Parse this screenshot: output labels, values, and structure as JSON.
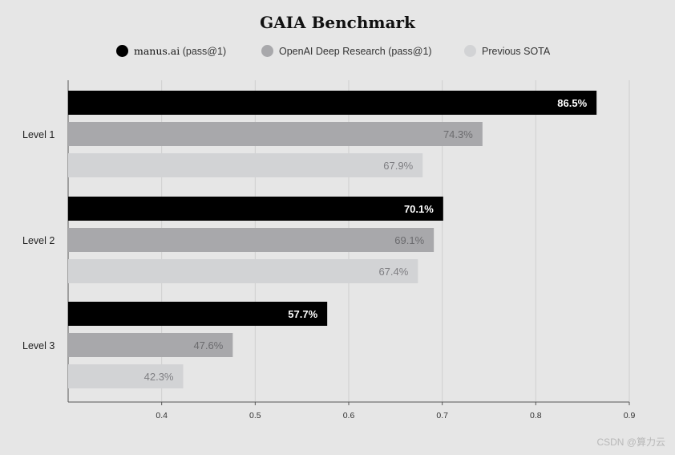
{
  "chart_data": {
    "type": "bar",
    "orientation": "horizontal",
    "title": "GAIA Benchmark",
    "categories": [
      "Level 1",
      "Level 2",
      "Level 3"
    ],
    "series": [
      {
        "name": "manus.ai",
        "legend_suffix": "(pass@1)",
        "color": "#000000",
        "label_color": "#ffffff",
        "values": [
          0.865,
          0.701,
          0.577
        ],
        "labels": [
          "86.5%",
          "70.1%",
          "57.7%"
        ]
      },
      {
        "name": "OpenAI Deep Research",
        "legend_suffix": "(pass@1)",
        "color": "#a8a8ab",
        "label_color": "#6b6b6e",
        "values": [
          0.743,
          0.691,
          0.476
        ],
        "labels": [
          "74.3%",
          "69.1%",
          "47.6%"
        ]
      },
      {
        "name": "Previous SOTA",
        "legend_suffix": "",
        "color": "#d2d3d5",
        "label_color": "#7e7e82",
        "values": [
          0.679,
          0.674,
          0.423
        ],
        "labels": [
          "67.9%",
          "67.4%",
          "42.3%"
        ]
      }
    ],
    "xlim": [
      0.3,
      0.9
    ],
    "xticks": [
      0.4,
      0.5,
      0.6,
      0.7,
      0.8,
      0.9
    ],
    "xtick_labels": [
      "0.4",
      "0.5",
      "0.6",
      "0.7",
      "0.8",
      "0.9"
    ],
    "grid": true,
    "legend_position": "top-center"
  },
  "watermark": "CSDN @算力云"
}
